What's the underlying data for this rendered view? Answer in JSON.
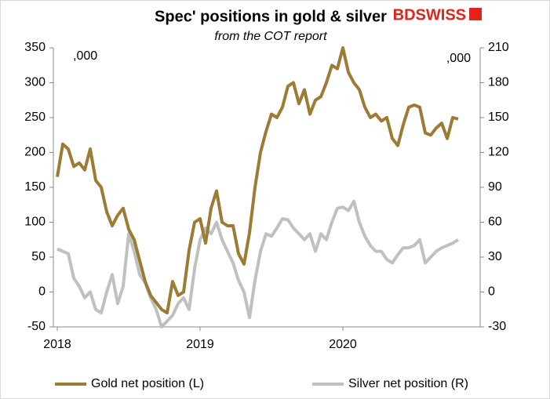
{
  "chart_data": {
    "type": "line",
    "title": "Spec' positions in gold & silver",
    "subtitle": "from the COT report",
    "logo": "BDSWISS",
    "annotations": [
      ",000",
      ",000"
    ],
    "categories": [
      "2018",
      null,
      null,
      null,
      null,
      null,
      null,
      null,
      null,
      null,
      null,
      null,
      null,
      null,
      null,
      null,
      null,
      null,
      null,
      null,
      null,
      null,
      null,
      null,
      null,
      null,
      "2019",
      null,
      null,
      null,
      null,
      null,
      null,
      null,
      null,
      null,
      null,
      null,
      null,
      null,
      null,
      null,
      null,
      null,
      null,
      null,
      null,
      null,
      null,
      null,
      null,
      null,
      "2020",
      null,
      null,
      null,
      null,
      null,
      null,
      null,
      null,
      null,
      null,
      null,
      null,
      null,
      null,
      null,
      null,
      null,
      null,
      null,
      null,
      null
    ],
    "series": [
      {
        "name": "Gold net position (L)",
        "color": "#9c7b35",
        "axis": "y",
        "values": [
          165,
          212,
          205,
          180,
          185,
          175,
          205,
          160,
          150,
          115,
          95,
          110,
          120,
          90,
          75,
          45,
          15,
          -5,
          -15,
          -25,
          -30,
          15,
          -5,
          0,
          60,
          100,
          105,
          70,
          120,
          145,
          100,
          95,
          95,
          55,
          40,
          85,
          150,
          200,
          230,
          255,
          250,
          265,
          295,
          300,
          270,
          290,
          255,
          275,
          280,
          300,
          325,
          320,
          350,
          315,
          300,
          290,
          265,
          250,
          255,
          245,
          250,
          220,
          210,
          240,
          265,
          268,
          265,
          228,
          225,
          235,
          242,
          220,
          250,
          248
        ]
      },
      {
        "name": "Silver net position (R)",
        "color": "#c0c0c0",
        "axis": "y2",
        "values": [
          37,
          35,
          33,
          12,
          5,
          -5,
          0,
          -15,
          -18,
          0,
          15,
          -10,
          5,
          50,
          35,
          15,
          8,
          -5,
          -15,
          -30,
          -25,
          -20,
          -10,
          -5,
          -15,
          20,
          45,
          55,
          50,
          60,
          45,
          35,
          25,
          10,
          0,
          -22,
          10,
          35,
          50,
          48,
          55,
          63,
          62,
          55,
          50,
          45,
          50,
          35,
          50,
          45,
          60,
          72,
          73,
          70,
          78,
          60,
          48,
          40,
          35,
          35,
          28,
          25,
          32,
          38,
          38,
          40,
          45,
          25,
          30,
          35,
          38,
          40,
          42,
          45
        ]
      }
    ],
    "ylim": [
      -50,
      350
    ],
    "yticks": [
      -50,
      0,
      50,
      100,
      150,
      200,
      250,
      300,
      350
    ],
    "y2lim": [
      -30,
      210
    ],
    "y2ticks": [
      -30,
      0,
      30,
      60,
      90,
      120,
      150,
      180,
      210
    ],
    "legend": "bottom",
    "grid": false
  }
}
